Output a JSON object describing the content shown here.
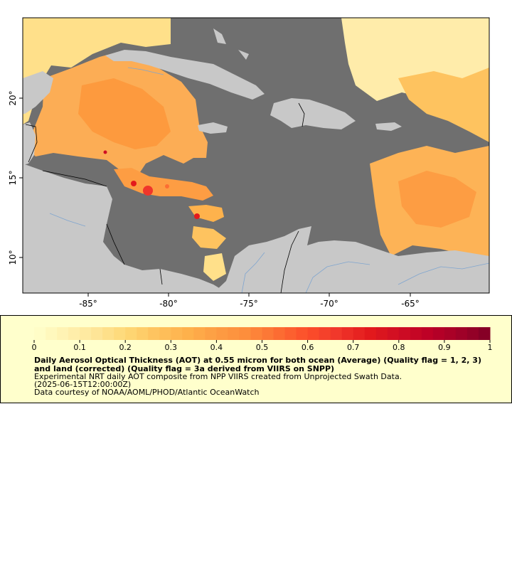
{
  "map": {
    "lat_labels": [
      "20°",
      "15°",
      "10°"
    ],
    "lon_labels": [
      "-85°",
      "-80°",
      "-75°",
      "-70°",
      "-65°"
    ]
  },
  "legend": {
    "ticks": [
      "0",
      "0.1",
      "0.2",
      "0.3",
      "0.4",
      "0.5",
      "0.6",
      "0.7",
      "0.8",
      "0.9",
      "1"
    ],
    "title": "Daily Aerosol Optical Thickness (AOT) at 0.55 micron for both ocean (Average) (Quality flag = 1, 2, 3) and land (corrected) (Quality flag = 3a derived from VIIRS on SNPP)",
    "subtitle_line1": "Experimental NRT daily AOT composite from NPP VIIRS created from Unprojected Swath Data.",
    "subtitle_line2": "(2025-06-15T12:00:00Z)",
    "credit": "Data courtesy of NOAA/AOML/PHOD/Atlantic OceanWatch"
  },
  "colors": {
    "ocean_nodata": "#6f6f6f",
    "land": "#c8c8c8",
    "legend_bg": "#ffffcc",
    "colormap": [
      "#ffffcc",
      "#fff2b2",
      "#fee699",
      "#fed976",
      "#fec35f",
      "#feb24c",
      "#fd9d43",
      "#fd8d3c",
      "#fc6e33",
      "#fc4e2a",
      "#f0362b",
      "#e31a1c",
      "#cf0e23",
      "#bd0026",
      "#a10128",
      "#800026"
    ]
  }
}
